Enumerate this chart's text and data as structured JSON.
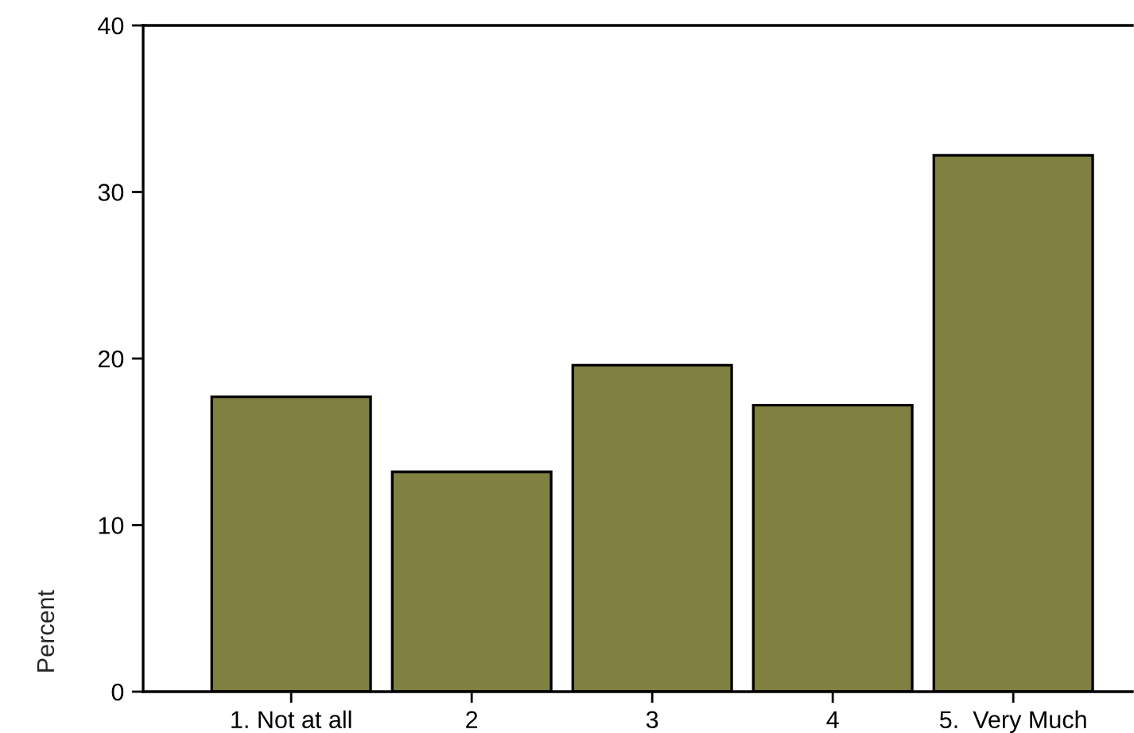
{
  "chart_data": {
    "type": "bar",
    "ylabel": "Percent",
    "categories": [
      "1. Not at all",
      "2",
      "3",
      "4",
      "5.  Very Much"
    ],
    "values": [
      17.7,
      13.2,
      19.6,
      17.2,
      32.2
    ],
    "color": "#808040",
    "ylim": [
      0,
      40
    ],
    "yticks": [
      0,
      10,
      20,
      30,
      40
    ],
    "grid": false,
    "legend": false
  }
}
